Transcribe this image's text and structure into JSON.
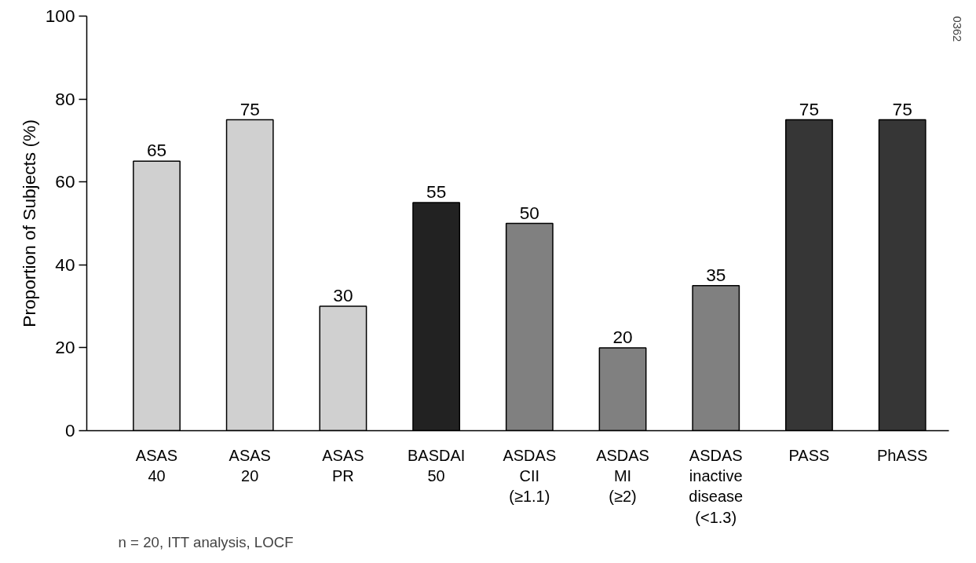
{
  "chart_data": {
    "type": "bar",
    "ylabel": "Proportion of Subjects (%)",
    "categories": [
      "ASAS 40",
      "ASAS 20",
      "ASAS PR",
      "BASDAI 50",
      "ASDAS CII (≥1.1)",
      "ASDAS MI (≥2)",
      "ASDAS inactive disease (<1.3)",
      "PASS",
      "PhASS"
    ],
    "values": [
      65,
      75,
      30,
      55,
      50,
      20,
      35,
      75,
      75
    ],
    "colors": [
      "#d0d0d0",
      "#d0d0d0",
      "#d0d0d0",
      "#222222",
      "#808080",
      "#808080",
      "#808080",
      "#363636",
      "#363636"
    ],
    "ylim": [
      0,
      100
    ],
    "yticks": [
      0,
      20,
      40,
      60,
      80,
      100
    ],
    "grid": false,
    "data_labels": true,
    "annotations": [
      "n = 20, ITT analysis, LOCF",
      "0362"
    ]
  }
}
